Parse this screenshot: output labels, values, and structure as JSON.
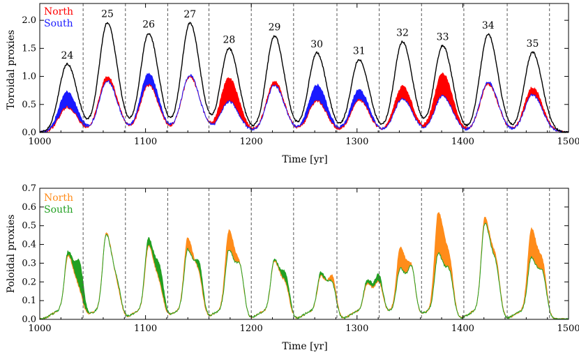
{
  "chart_data": [
    {
      "type": "line",
      "title": "",
      "xlabel": "Time [yr]",
      "ylabel": "Toroidal proxies",
      "xlim": [
        1000,
        1500
      ],
      "ylim": [
        0,
        2.3
      ],
      "xticks": [
        1000,
        1100,
        1200,
        1300,
        1400,
        1500
      ],
      "xtick_labels": [
        "1000",
        "1100",
        "1200",
        "1300",
        "1400",
        "1500"
      ],
      "yticks": [
        0,
        0.5,
        1.0,
        1.5,
        2.0
      ],
      "ytick_labels": [
        "0.0",
        "0.5",
        "1.0",
        "1.5",
        "2.0"
      ],
      "legend": [
        {
          "name": "North",
          "color": "#ff0000"
        },
        {
          "name": "South",
          "color": "#1a1aff"
        }
      ],
      "legend_position": "top-left",
      "cycle_boundaries": [
        1041,
        1081,
        1121,
        1160,
        1200,
        1240,
        1281,
        1321,
        1361,
        1401,
        1442,
        1482
      ],
      "cycles": [
        {
          "label": "24",
          "t": 1026,
          "total": 1.22,
          "north": 0.45,
          "south": 0.72
        },
        {
          "label": "25",
          "t": 1064,
          "total": 1.96,
          "north": 1.0,
          "south": 0.92
        },
        {
          "label": "26",
          "t": 1103,
          "total": 1.77,
          "north": 0.84,
          "south": 1.05
        },
        {
          "label": "27",
          "t": 1142,
          "total": 1.95,
          "north": 1.0,
          "south": 1.02
        },
        {
          "label": "28",
          "t": 1179,
          "total": 1.5,
          "north": 0.97,
          "south": 0.55
        },
        {
          "label": "29",
          "t": 1222,
          "total": 1.72,
          "north": 0.9,
          "south": 0.84
        },
        {
          "label": "30",
          "t": 1262,
          "total": 1.42,
          "north": 0.56,
          "south": 0.85
        },
        {
          "label": "31",
          "t": 1302,
          "total": 1.3,
          "north": 0.58,
          "south": 0.76
        },
        {
          "label": "32",
          "t": 1343,
          "total": 1.62,
          "north": 0.82,
          "south": 0.6
        },
        {
          "label": "33",
          "t": 1381,
          "total": 1.55,
          "north": 1.05,
          "south": 0.65
        },
        {
          "label": "34",
          "t": 1424,
          "total": 1.75,
          "north": 0.86,
          "south": 0.9
        },
        {
          "label": "35",
          "t": 1466,
          "total": 1.43,
          "north": 0.8,
          "south": 0.67
        }
      ],
      "series": [
        {
          "name": "Total",
          "color": "#000000"
        },
        {
          "name": "North",
          "color": "#ff0000"
        },
        {
          "name": "South",
          "color": "#1a1aff"
        }
      ]
    },
    {
      "type": "line",
      "title": "",
      "xlabel": "Time [yr]",
      "ylabel": "Poloidal proxies",
      "xlim": [
        1000,
        1500
      ],
      "ylim": [
        0,
        0.7
      ],
      "xticks": [
        1000,
        1100,
        1200,
        1300,
        1400,
        1500
      ],
      "xtick_labels": [
        "1000",
        "1100",
        "1200",
        "1300",
        "1400",
        "1500"
      ],
      "yticks": [
        0,
        0.1,
        0.2,
        0.3,
        0.4,
        0.5,
        0.6,
        0.7
      ],
      "ytick_labels": [
        "0.0",
        "0.1",
        "0.2",
        "0.3",
        "0.4",
        "0.5",
        "0.6",
        "0.7"
      ],
      "legend": [
        {
          "name": "North",
          "color": "#ff8c1a"
        },
        {
          "name": "South",
          "color": "#22a022"
        }
      ],
      "legend_position": "top-left",
      "cycle_boundaries": [
        1041,
        1081,
        1121,
        1160,
        1200,
        1240,
        1281,
        1321,
        1361,
        1401,
        1442,
        1482
      ],
      "cycles": [
        {
          "t": 1027,
          "north": 0.33,
          "south": 0.35,
          "late_north": 0.08,
          "late_south": 0.22
        },
        {
          "t": 1063,
          "north": 0.45,
          "south": 0.44,
          "late_north": 0.08,
          "late_south": 0.1
        },
        {
          "t": 1103,
          "north": 0.38,
          "south": 0.42,
          "late_north": 0.1,
          "late_south": 0.18
        },
        {
          "t": 1140,
          "north": 0.42,
          "south": 0.36,
          "late_north": 0.15,
          "late_south": 0.22
        },
        {
          "t": 1179,
          "north": 0.46,
          "south": 0.36,
          "late_north": 0.18,
          "late_south": 0.2
        },
        {
          "t": 1222,
          "north": 0.3,
          "south": 0.31,
          "late_north": 0.12,
          "late_south": 0.17
        },
        {
          "t": 1266,
          "north": 0.22,
          "south": 0.24,
          "late_north": 0.18,
          "late_south": 0.14
        },
        {
          "t": 1310,
          "north": 0.18,
          "south": 0.2,
          "late_north": 0.15,
          "late_south": 0.18
        },
        {
          "t": 1341,
          "north": 0.37,
          "south": 0.26,
          "late_north": 0.2,
          "late_south": 0.22
        },
        {
          "t": 1377,
          "north": 0.56,
          "south": 0.34,
          "late_north": 0.2,
          "late_south": 0.18
        },
        {
          "t": 1421,
          "north": 0.53,
          "south": 0.5,
          "late_north": 0.2,
          "late_south": 0.18
        },
        {
          "t": 1465,
          "north": 0.47,
          "south": 0.32,
          "late_north": 0.2,
          "late_south": 0.18
        }
      ],
      "series": [
        {
          "name": "North",
          "color": "#ff8c1a"
        },
        {
          "name": "South",
          "color": "#22a022"
        }
      ]
    }
  ]
}
